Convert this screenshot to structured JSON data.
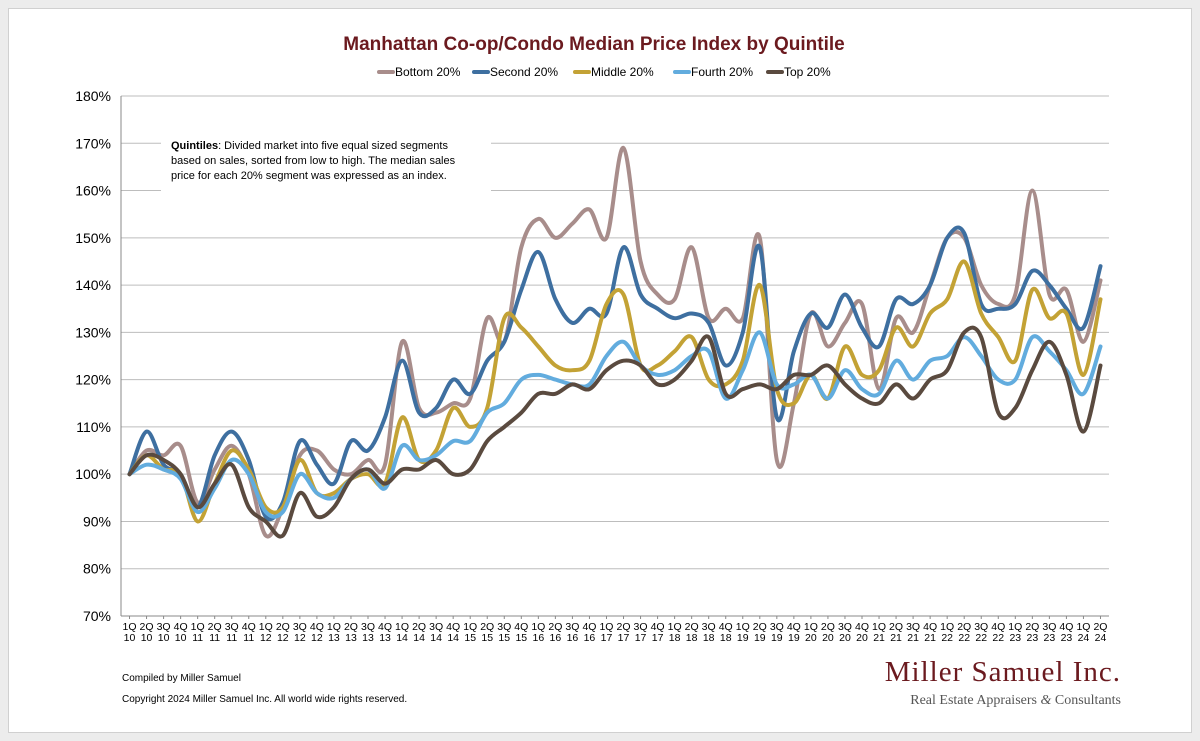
{
  "chart_data": {
    "type": "line",
    "title": "Manhattan Co-op/Condo Median Price Index by Quintile",
    "ylim": [
      0.7,
      1.8
    ],
    "yticks": [
      "70%",
      "80%",
      "90%",
      "100%",
      "110%",
      "120%",
      "130%",
      "140%",
      "150%",
      "160%",
      "170%",
      "180%"
    ],
    "grid": "horizontal",
    "legend_position": "top-center",
    "categories": [
      [
        "1Q",
        "10"
      ],
      [
        "2Q",
        "10"
      ],
      [
        "3Q",
        "10"
      ],
      [
        "4Q",
        "10"
      ],
      [
        "1Q",
        "11"
      ],
      [
        "2Q",
        "11"
      ],
      [
        "3Q",
        "11"
      ],
      [
        "4Q",
        "11"
      ],
      [
        "1Q",
        "12"
      ],
      [
        "2Q",
        "12"
      ],
      [
        "3Q",
        "12"
      ],
      [
        "4Q",
        "12"
      ],
      [
        "1Q",
        "13"
      ],
      [
        "2Q",
        "13"
      ],
      [
        "3Q",
        "13"
      ],
      [
        "4Q",
        "13"
      ],
      [
        "1Q",
        "14"
      ],
      [
        "2Q",
        "14"
      ],
      [
        "3Q",
        "14"
      ],
      [
        "4Q",
        "14"
      ],
      [
        "1Q",
        "15"
      ],
      [
        "2Q",
        "15"
      ],
      [
        "3Q",
        "15"
      ],
      [
        "4Q",
        "15"
      ],
      [
        "1Q",
        "16"
      ],
      [
        "2Q",
        "16"
      ],
      [
        "3Q",
        "16"
      ],
      [
        "4Q",
        "16"
      ],
      [
        "1Q",
        "17"
      ],
      [
        "2Q",
        "17"
      ],
      [
        "3Q",
        "17"
      ],
      [
        "4Q",
        "17"
      ],
      [
        "1Q",
        "18"
      ],
      [
        "2Q",
        "18"
      ],
      [
        "3Q",
        "18"
      ],
      [
        "4Q",
        "18"
      ],
      [
        "1Q",
        "19"
      ],
      [
        "2Q",
        "19"
      ],
      [
        "3Q",
        "19"
      ],
      [
        "4Q",
        "19"
      ],
      [
        "1Q",
        "20"
      ],
      [
        "2Q",
        "20"
      ],
      [
        "3Q",
        "20"
      ],
      [
        "4Q",
        "20"
      ],
      [
        "1Q",
        "21"
      ],
      [
        "2Q",
        "21"
      ],
      [
        "3Q",
        "21"
      ],
      [
        "4Q",
        "21"
      ],
      [
        "1Q",
        "22"
      ],
      [
        "2Q",
        "22"
      ],
      [
        "3Q",
        "22"
      ],
      [
        "4Q",
        "22"
      ],
      [
        "1Q",
        "23"
      ],
      [
        "2Q",
        "23"
      ],
      [
        "3Q",
        "23"
      ],
      [
        "4Q",
        "23"
      ],
      [
        "1Q",
        "24"
      ],
      [
        "2Q",
        "24"
      ]
    ],
    "series": [
      {
        "name": "Bottom 20%",
        "color": "#a88d8b",
        "values": [
          1.0,
          1.05,
          1.04,
          1.06,
          0.94,
          1.01,
          1.06,
          1.0,
          0.87,
          0.93,
          1.04,
          1.05,
          1.01,
          1.0,
          1.03,
          1.02,
          1.28,
          1.14,
          1.13,
          1.15,
          1.16,
          1.33,
          1.28,
          1.48,
          1.54,
          1.5,
          1.53,
          1.56,
          1.5,
          1.69,
          1.45,
          1.38,
          1.37,
          1.48,
          1.33,
          1.35,
          1.33,
          1.5,
          1.03,
          1.15,
          1.34,
          1.27,
          1.32,
          1.36,
          1.18,
          1.33,
          1.3,
          1.4,
          1.5,
          1.5,
          1.4,
          1.36,
          1.38,
          1.6,
          1.38,
          1.39,
          1.28,
          1.41
        ]
      },
      {
        "name": "Second 20%",
        "color": "#3e6fa0",
        "values": [
          1.0,
          1.09,
          1.02,
          1.0,
          0.93,
          1.04,
          1.09,
          1.03,
          0.91,
          0.94,
          1.07,
          1.02,
          0.98,
          1.07,
          1.05,
          1.12,
          1.24,
          1.13,
          1.14,
          1.2,
          1.17,
          1.24,
          1.28,
          1.39,
          1.47,
          1.37,
          1.32,
          1.35,
          1.34,
          1.48,
          1.38,
          1.35,
          1.33,
          1.34,
          1.32,
          1.23,
          1.3,
          1.48,
          1.12,
          1.26,
          1.34,
          1.31,
          1.38,
          1.31,
          1.27,
          1.37,
          1.36,
          1.4,
          1.5,
          1.51,
          1.36,
          1.35,
          1.36,
          1.43,
          1.4,
          1.35,
          1.31,
          1.44
        ]
      },
      {
        "name": "Middle 20%",
        "color": "#c3a235",
        "values": [
          1.0,
          1.04,
          1.01,
          1.0,
          0.9,
          0.98,
          1.05,
          1.01,
          0.93,
          0.93,
          1.03,
          0.96,
          0.96,
          0.99,
          1.0,
          0.98,
          1.12,
          1.03,
          1.05,
          1.14,
          1.1,
          1.14,
          1.33,
          1.31,
          1.27,
          1.23,
          1.22,
          1.24,
          1.36,
          1.38,
          1.23,
          1.23,
          1.26,
          1.29,
          1.2,
          1.19,
          1.24,
          1.4,
          1.18,
          1.15,
          1.21,
          1.16,
          1.27,
          1.21,
          1.22,
          1.31,
          1.27,
          1.34,
          1.37,
          1.45,
          1.34,
          1.29,
          1.24,
          1.39,
          1.33,
          1.34,
          1.21,
          1.37
        ]
      },
      {
        "name": "Fourth 20%",
        "color": "#62acde",
        "values": [
          1.0,
          1.02,
          1.01,
          0.99,
          0.92,
          0.97,
          1.03,
          1.0,
          0.92,
          0.92,
          1.0,
          0.96,
          0.95,
          0.99,
          1.01,
          0.97,
          1.06,
          1.03,
          1.04,
          1.07,
          1.07,
          1.13,
          1.15,
          1.2,
          1.21,
          1.2,
          1.19,
          1.19,
          1.25,
          1.28,
          1.23,
          1.21,
          1.22,
          1.25,
          1.26,
          1.16,
          1.22,
          1.3,
          1.19,
          1.19,
          1.21,
          1.16,
          1.22,
          1.18,
          1.17,
          1.24,
          1.2,
          1.24,
          1.25,
          1.29,
          1.25,
          1.2,
          1.2,
          1.29,
          1.26,
          1.22,
          1.17,
          1.27
        ]
      },
      {
        "name": "Top 20%",
        "color": "#5a4a3f",
        "values": [
          1.0,
          1.04,
          1.03,
          1.0,
          0.93,
          0.98,
          1.02,
          0.93,
          0.9,
          0.87,
          0.96,
          0.91,
          0.93,
          0.99,
          1.01,
          0.98,
          1.01,
          1.01,
          1.03,
          1.0,
          1.01,
          1.07,
          1.1,
          1.13,
          1.17,
          1.17,
          1.19,
          1.18,
          1.22,
          1.24,
          1.23,
          1.19,
          1.2,
          1.24,
          1.29,
          1.17,
          1.18,
          1.19,
          1.18,
          1.21,
          1.21,
          1.23,
          1.19,
          1.16,
          1.15,
          1.19,
          1.16,
          1.2,
          1.22,
          1.3,
          1.29,
          1.13,
          1.14,
          1.22,
          1.28,
          1.21,
          1.09,
          1.23
        ]
      }
    ],
    "annotation": {
      "bold": "Quintiles",
      "lines": [
        ": Divided market into five equal sized segments",
        "based on sales, sorted from low to high. The median sales",
        "price for each 20% segment was expressed as an index."
      ]
    }
  },
  "footer": {
    "compiled": "Compiled by Miller Samuel",
    "copyright": "Copyright 2024 Miller Samuel Inc.  All world wide rights reserved."
  },
  "brand": {
    "name": "Miller Samuel Inc.",
    "tagline_part1": "Real Estate Appraisers",
    "tagline_amp": "&",
    "tagline_part2": "Consultants"
  }
}
